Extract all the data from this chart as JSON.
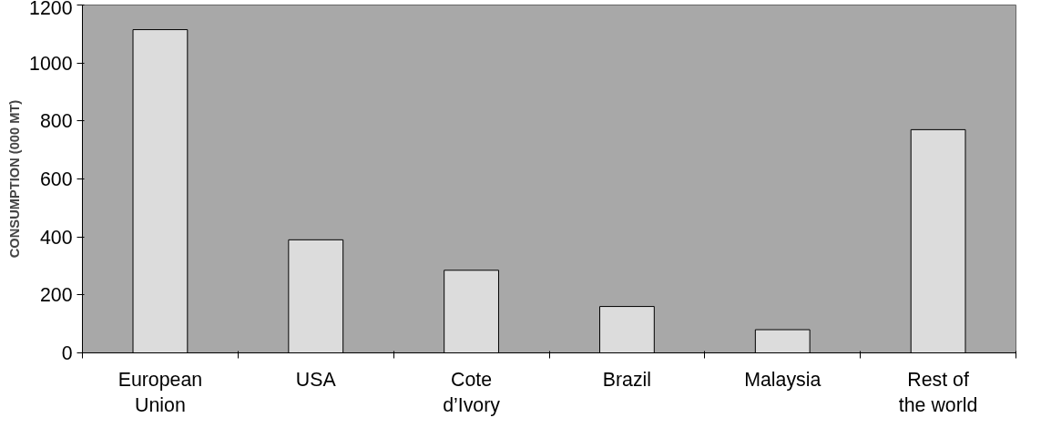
{
  "chart_data": {
    "type": "bar",
    "ylabel": "CONSUMPTION (000 MT)",
    "categories": [
      "European\nUnion",
      "USA",
      "Cote\nd’Ivory",
      "Brazil",
      "Malaysia",
      "Rest of\nthe world"
    ],
    "values": [
      1115,
      390,
      285,
      160,
      80,
      770
    ],
    "color": "#dcdcdc",
    "ylim": [
      0,
      1200
    ],
    "yticks": [
      0,
      200,
      400,
      600,
      800,
      1000,
      1200
    ],
    "grid": false
  }
}
